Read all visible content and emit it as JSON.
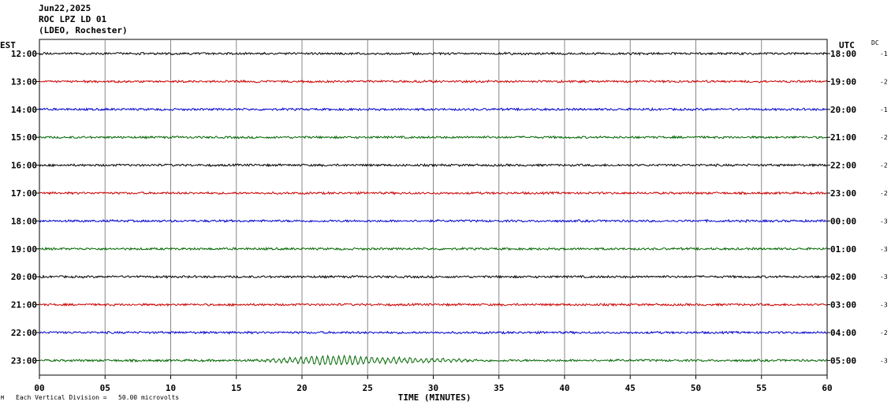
{
  "header": {
    "date": "Jun22,2025",
    "station": "ROC LPZ LD 01",
    "network": "(LDEO, Rochester)"
  },
  "labels": {
    "left_zone": "EST",
    "right_zone": "UTC",
    "dc": "DC",
    "footer": "Each Vertical Division =   50.00 microvolts",
    "footer_mark": "M"
  },
  "chart_data": {
    "type": "line",
    "title": "",
    "xlabel": "TIME (MINUTES)",
    "ylabel": "",
    "xlim": [
      0,
      60
    ],
    "x_ticks": [
      "00",
      "05",
      "10",
      "15",
      "20",
      "25",
      "30",
      "35",
      "40",
      "45",
      "50",
      "55",
      "60"
    ],
    "grid": true,
    "colors": [
      "#000000",
      "#cc0000",
      "#0000cc",
      "#006600"
    ],
    "series": [
      {
        "est": "12:00",
        "utc": "18:00",
        "dc": "-1",
        "color": "#000000",
        "event": null
      },
      {
        "est": "13:00",
        "utc": "19:00",
        "dc": "-2",
        "color": "#cc0000",
        "event": null
      },
      {
        "est": "14:00",
        "utc": "20:00",
        "dc": "-1",
        "color": "#0000cc",
        "event": null
      },
      {
        "est": "15:00",
        "utc": "21:00",
        "dc": "-2",
        "color": "#006600",
        "event": null
      },
      {
        "est": "16:00",
        "utc": "22:00",
        "dc": "-2",
        "color": "#000000",
        "event": null
      },
      {
        "est": "17:00",
        "utc": "23:00",
        "dc": "-2",
        "color": "#cc0000",
        "event": null
      },
      {
        "est": "18:00",
        "utc": "00:00",
        "dc": "-3",
        "color": "#0000cc",
        "event": null
      },
      {
        "est": "19:00",
        "utc": "01:00",
        "dc": "-3",
        "color": "#006600",
        "event": null
      },
      {
        "est": "20:00",
        "utc": "02:00",
        "dc": "-3",
        "color": "#000000",
        "event": null
      },
      {
        "est": "21:00",
        "utc": "03:00",
        "dc": "-3",
        "color": "#cc0000",
        "event": null
      },
      {
        "est": "22:00",
        "utc": "04:00",
        "dc": "-2",
        "color": "#0000cc",
        "event": null
      },
      {
        "est": "23:00",
        "utc": "05:00",
        "dc": "-3",
        "color": "#006600",
        "event": {
          "start_min": 16,
          "end_min": 35,
          "peak_min": 22
        }
      }
    ]
  }
}
